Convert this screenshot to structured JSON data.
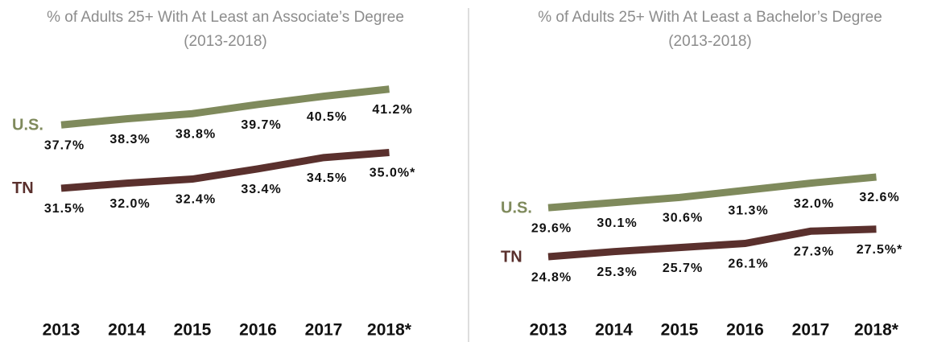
{
  "chart_data": [
    {
      "type": "line",
      "title": "% of Adults 25+ With At Least an Associate’s Degree",
      "subtitle": "(2013-2018)",
      "categories": [
        "2013",
        "2014",
        "2015",
        "2016",
        "2017",
        "2018*"
      ],
      "series": [
        {
          "name": "U.S.",
          "color": "#7f8a5c",
          "values": [
            37.7,
            38.3,
            38.8,
            39.7,
            40.5,
            41.2
          ],
          "value_labels": [
            "37.7%",
            "38.3%",
            "38.8%",
            "39.7%",
            "40.5%",
            "41.2%"
          ]
        },
        {
          "name": "TN",
          "color": "#5a302d",
          "values": [
            31.5,
            32.0,
            32.4,
            33.4,
            34.5,
            35.0
          ],
          "value_labels": [
            "31.5%",
            "32.0%",
            "32.4%",
            "33.4%",
            "34.5%",
            "35.0%*"
          ]
        }
      ]
    },
    {
      "type": "line",
      "title": "% of Adults 25+ With At Least a Bachelor’s Degree",
      "subtitle": "(2013-2018)",
      "categories": [
        "2013",
        "2014",
        "2015",
        "2016",
        "2017",
        "2018*"
      ],
      "series": [
        {
          "name": "U.S.",
          "color": "#7f8a5c",
          "values": [
            29.6,
            30.1,
            30.6,
            31.3,
            32.0,
            32.6
          ],
          "value_labels": [
            "29.6%",
            "30.1%",
            "30.6%",
            "31.3%",
            "32.0%",
            "32.6%"
          ]
        },
        {
          "name": "TN",
          "color": "#5a302d",
          "values": [
            24.8,
            25.3,
            25.7,
            26.1,
            27.3,
            27.5
          ],
          "value_labels": [
            "24.8%",
            "25.3%",
            "25.7%",
            "26.1%",
            "27.3%",
            "27.5%*"
          ]
        }
      ]
    }
  ]
}
